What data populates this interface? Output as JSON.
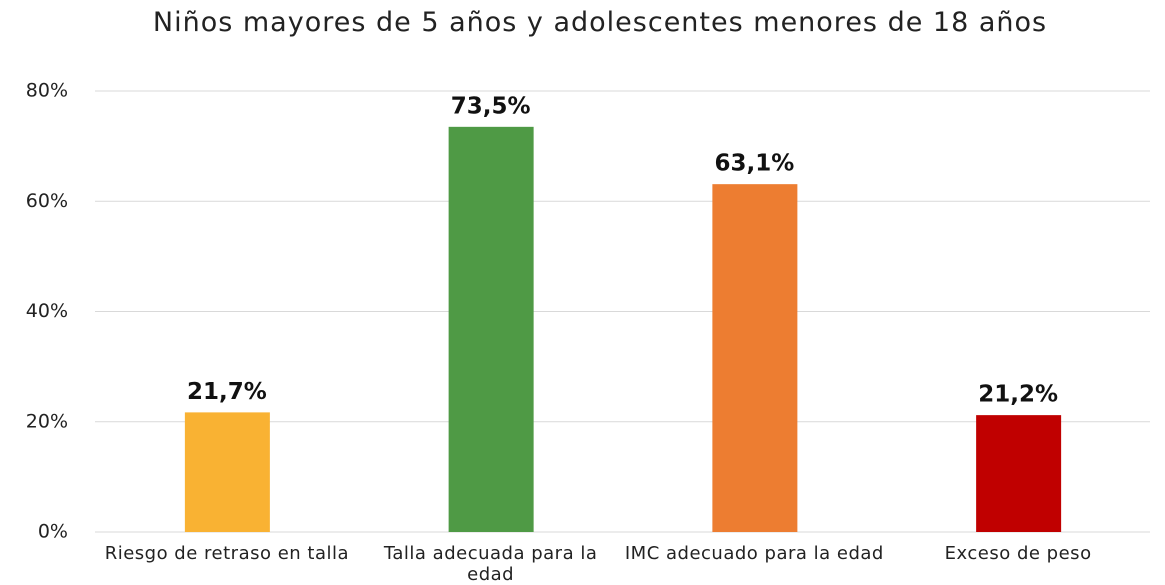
{
  "chart_data": {
    "type": "bar",
    "title": "Niños mayores de 5 años y adolescentes menores de 18 años",
    "categories": [
      "Riesgo de retraso en talla",
      "Talla adecuada para la edad",
      "IMC adecuado para la edad",
      "Exceso de peso"
    ],
    "values": [
      21.7,
      73.5,
      63.1,
      21.2
    ],
    "value_labels": [
      "21,7%",
      "73,5%",
      "63,1%",
      "21,2%"
    ],
    "colors": [
      "#f9b233",
      "#4f9a45",
      "#ed7d31",
      "#c00000"
    ],
    "ylim": [
      0,
      80
    ],
    "yticks": [
      {
        "value": 0,
        "label": "0%"
      },
      {
        "value": 20,
        "label": "20%"
      },
      {
        "value": 40,
        "label": "40%"
      },
      {
        "value": 60,
        "label": "60%"
      },
      {
        "value": 80,
        "label": "80%"
      }
    ],
    "grid": true
  }
}
